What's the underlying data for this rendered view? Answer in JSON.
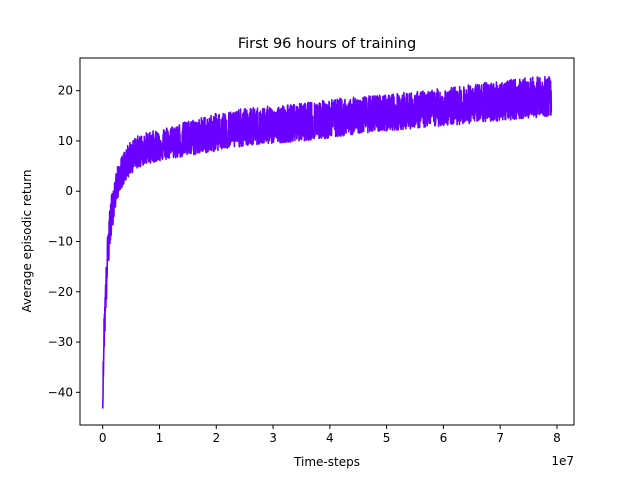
{
  "chart_data": {
    "type": "line",
    "title": "First 96 hours of training",
    "xlabel": "Time-steps",
    "ylabel": "Average episodic return",
    "x_offset_label": "1e7",
    "x_multiplier": 10000000,
    "xlim": [
      -0.4,
      8.3
    ],
    "ylim": [
      -46.5,
      26.5
    ],
    "xticks": [
      0,
      1,
      2,
      3,
      4,
      5,
      6,
      7,
      8
    ],
    "xtick_labels": [
      "0",
      "1",
      "2",
      "3",
      "4",
      "5",
      "6",
      "7",
      "8"
    ],
    "yticks": [
      -40,
      -30,
      -20,
      -10,
      0,
      10,
      20
    ],
    "ytick_labels": [
      "−40",
      "−30",
      "−20",
      "−10",
      "0",
      "10",
      "20"
    ],
    "grid": false,
    "legend": "none",
    "series": [
      {
        "color": "#6a00ff",
        "x": [
          0.0,
          0.02,
          0.04,
          0.06,
          0.08,
          0.1,
          0.15,
          0.2,
          0.25,
          0.3,
          0.4,
          0.5,
          0.6,
          0.8,
          1.0,
          1.5,
          2.0,
          2.5,
          3.0,
          3.5,
          4.0,
          4.5,
          5.0,
          5.5,
          6.0,
          6.5,
          7.0,
          7.5,
          7.9
        ],
        "y_mean": [
          -43.0,
          -30.0,
          -24.0,
          -19.0,
          -14.0,
          -10.0,
          -5.0,
          -1.5,
          1.0,
          3.0,
          5.0,
          6.5,
          7.5,
          8.5,
          9.3,
          10.2,
          11.0,
          11.7,
          12.4,
          13.1,
          13.8,
          14.4,
          15.0,
          15.6,
          16.2,
          16.8,
          17.3,
          17.8,
          18.2
        ],
        "y_low": [
          -43.5,
          -33.0,
          -28.0,
          -24.0,
          -18.0,
          -15.0,
          -9.0,
          -5.0,
          -2.0,
          0.0,
          2.0,
          3.5,
          4.5,
          5.5,
          6.0,
          7.0,
          8.0,
          9.0,
          9.5,
          10.0,
          10.5,
          11.5,
          12.0,
          12.5,
          13.0,
          13.5,
          14.0,
          14.5,
          15.0
        ],
        "y_high": [
          -40.0,
          -26.0,
          -20.0,
          -15.0,
          -10.0,
          -6.0,
          -1.0,
          2.0,
          4.5,
          6.0,
          8.5,
          10.0,
          11.0,
          11.8,
          12.3,
          14.0,
          15.5,
          16.5,
          17.0,
          17.5,
          18.3,
          18.8,
          19.3,
          19.8,
          20.5,
          21.3,
          22.0,
          22.6,
          23.0
        ]
      }
    ]
  }
}
